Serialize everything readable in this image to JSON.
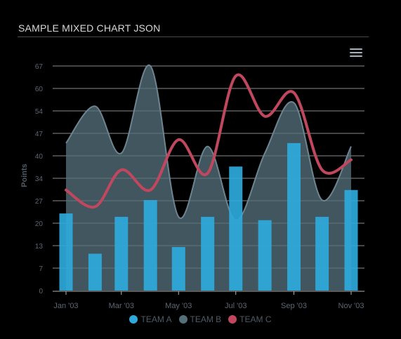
{
  "title": "SAMPLE MIXED CHART JSON",
  "menu_icon": "hamburger-menu-icon",
  "chart_data": {
    "type": "mixed",
    "title": "SAMPLE MIXED CHART JSON",
    "xlabel": "",
    "ylabel": "Points",
    "ylim": [
      0,
      67
    ],
    "y_ticks": [
      "0",
      "7",
      "13",
      "20",
      "27",
      "34",
      "40",
      "47",
      "54",
      "60",
      "67"
    ],
    "y_tick_values": [
      0,
      6.7,
      13.4,
      20.1,
      26.8,
      33.5,
      40.2,
      46.9,
      53.6,
      60.3,
      67
    ],
    "x_dates": [
      "2003-01-01",
      "2003-02-01",
      "2003-03-01",
      "2003-04-01",
      "2003-05-01",
      "2003-06-01",
      "2003-07-01",
      "2003-08-01",
      "2003-09-01",
      "2003-10-01",
      "2003-11-01"
    ],
    "x_tick_labels": [
      "Jan '03",
      "Mar '03",
      "May '03",
      "Jul '03",
      "Sep '03",
      "Nov '03"
    ],
    "x_tick_dates": [
      "2003-01-01",
      "2003-03-01",
      "2003-05-01",
      "2003-07-01",
      "2003-09-01",
      "2003-11-01"
    ],
    "grid": true,
    "legend_position": "bottom-center",
    "series": [
      {
        "name": "TEAM A",
        "type": "bar",
        "color": "#2ea9db",
        "values": [
          23,
          11,
          22,
          27,
          13,
          22,
          37,
          21,
          44,
          22,
          30
        ]
      },
      {
        "name": "TEAM B",
        "type": "area",
        "color": "#546e7a",
        "values": [
          44,
          55,
          41,
          67,
          22,
          43,
          21,
          41,
          56,
          27,
          43
        ]
      },
      {
        "name": "TEAM C",
        "type": "line",
        "color": "#c0475e",
        "values": [
          30,
          25,
          36,
          30,
          45,
          35,
          64,
          52,
          59,
          36,
          39
        ]
      }
    ]
  }
}
